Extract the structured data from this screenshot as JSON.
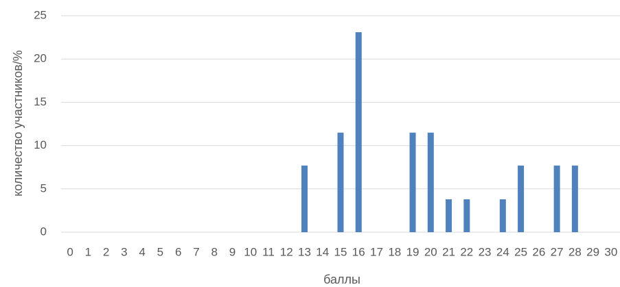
{
  "chart_data": {
    "type": "bar",
    "title": "",
    "xlabel": "баллы",
    "ylabel": "количество участников/%",
    "categories": [
      "0",
      "1",
      "2",
      "3",
      "4",
      "5",
      "6",
      "7",
      "8",
      "9",
      "10",
      "11",
      "12",
      "13",
      "14",
      "15",
      "16",
      "17",
      "18",
      "19",
      "20",
      "21",
      "22",
      "23",
      "24",
      "25",
      "26",
      "27",
      "28",
      "29",
      "30"
    ],
    "series": [
      {
        "values": [
          0,
          0,
          0,
          0,
          0,
          0,
          0,
          0,
          0,
          0,
          0,
          0,
          0,
          7.7,
          0,
          11.5,
          23.1,
          0,
          0,
          11.5,
          11.5,
          3.8,
          3.8,
          0,
          3.8,
          7.7,
          0,
          7.7,
          7.7,
          0,
          0
        ]
      }
    ],
    "ylim": [
      0,
      25
    ],
    "yticks": [
      0,
      5,
      10,
      15,
      20,
      25
    ],
    "grid": true,
    "legend": "none",
    "colors": {
      "bar": "#4F81BD",
      "grid": "#D9D9D9",
      "text": "#595959"
    }
  }
}
